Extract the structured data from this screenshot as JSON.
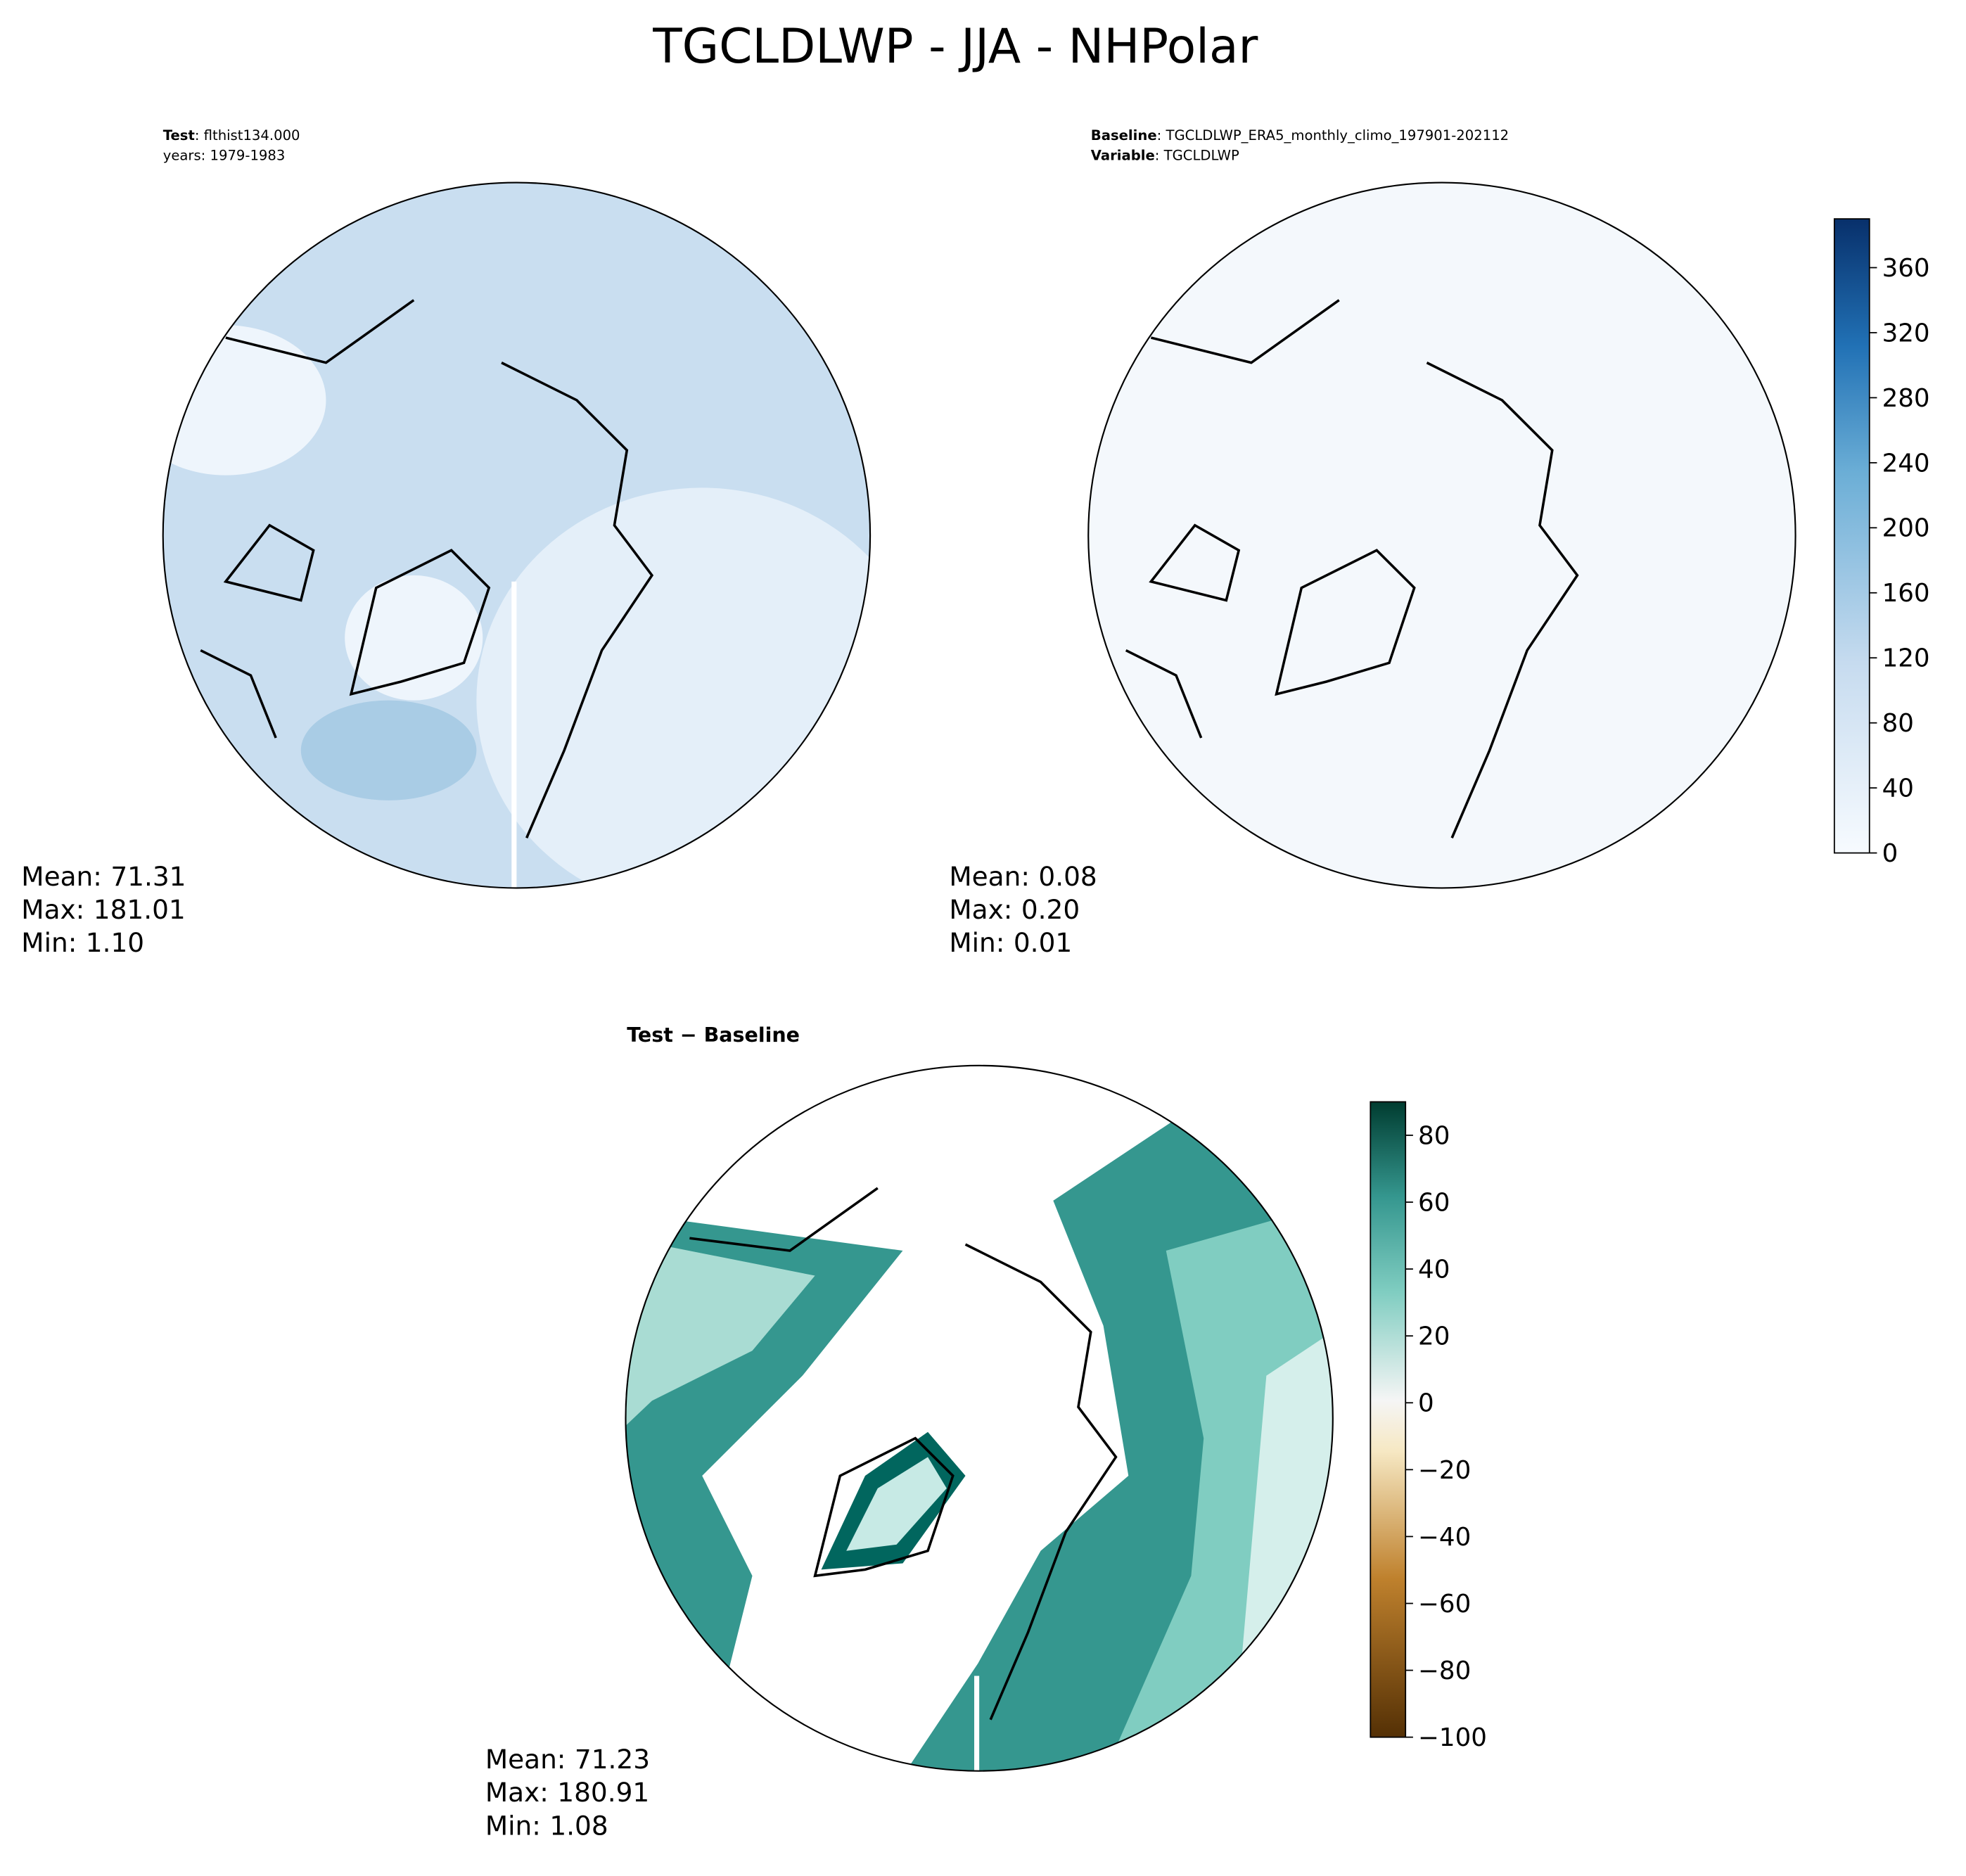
{
  "title": "TGCLDLWP - JJA - NHPolar",
  "panels": [
    {
      "header": [
        {
          "key": "Test",
          "text": ": flthist134.000"
        },
        {
          "text": "years: 1979-1983"
        }
      ],
      "stats": [
        {
          "label": "Mean:",
          "value": "71.31"
        },
        {
          "label": "Max:",
          "value": "181.01"
        },
        {
          "label": "Min:",
          "value": "1.10"
        }
      ]
    },
    {
      "header": [
        {
          "key": "Baseline",
          "text": ": TGCLDLWP_ERA5_monthly_climo_197901-202112"
        },
        {
          "key": "Variable",
          "text": ": TGCLDLWP"
        }
      ],
      "stats": [
        {
          "label": "Mean:",
          "value": "0.08"
        },
        {
          "label": "Max:",
          "value": "0.20"
        },
        {
          "label": "Min:",
          "value": "0.01"
        }
      ]
    },
    {
      "header": [
        {
          "key": "Test − Baseline"
        }
      ],
      "stats": [
        {
          "label": "Mean:",
          "value": "71.23"
        },
        {
          "label": "Max:",
          "value": "180.91"
        },
        {
          "label": "Min:",
          "value": "1.08"
        }
      ]
    }
  ],
  "colorbars": [
    {
      "lim": [
        0,
        390
      ],
      "ticks": [
        0,
        40,
        80,
        120,
        160,
        200,
        240,
        280,
        320,
        360
      ]
    },
    {
      "lim": [
        -100,
        90
      ],
      "ticks": [
        {
          "value": -100,
          "label": "−100"
        },
        {
          "value": -80,
          "label": "−80"
        },
        {
          "value": -60,
          "label": "−60"
        },
        {
          "value": -40,
          "label": "−40"
        },
        {
          "value": -20,
          "label": "−20"
        },
        0,
        20,
        40,
        60,
        80
      ]
    }
  ]
}
